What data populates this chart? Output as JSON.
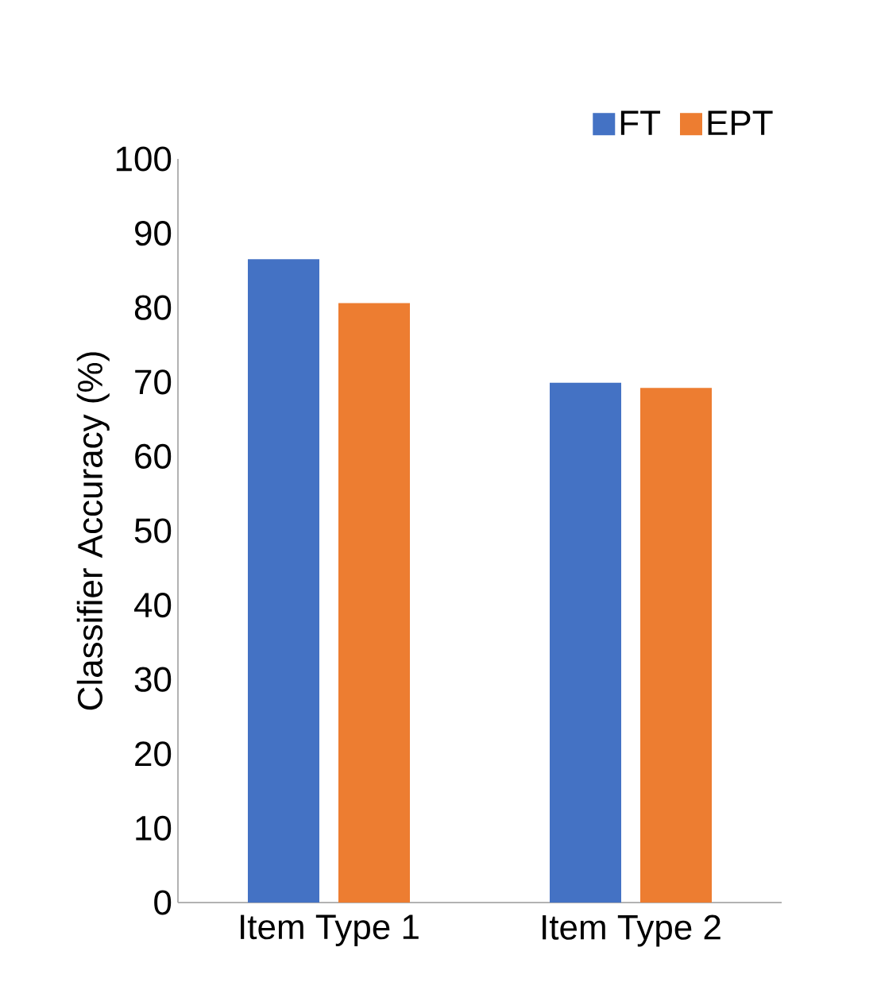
{
  "chart_data": {
    "type": "bar",
    "ylabel": "Classifier Accuracy (%)",
    "categories": [
      "Item Type 1",
      "Item Type 2"
    ],
    "series": [
      {
        "name": "FT",
        "color": "#4472c4",
        "values": [
          86.5,
          69.9
        ]
      },
      {
        "name": "EPT",
        "color": "#ed7d31",
        "values": [
          80.6,
          69.2
        ]
      }
    ],
    "ylim": [
      0,
      100
    ],
    "yticks": [
      0,
      10,
      20,
      30,
      40,
      50,
      60,
      70,
      80,
      90,
      100
    ],
    "legend": "top right"
  }
}
